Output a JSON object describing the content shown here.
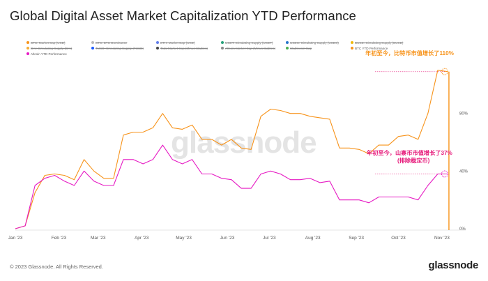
{
  "title": "Global Digital Asset Market Capitalization YTD Performance",
  "legend": [
    {
      "label": "BTC: Market Cap (USD)",
      "color": "#f7931a",
      "active": false
    },
    {
      "label": "BTC: BTC Dominance",
      "color": "#bbbbbb",
      "active": false
    },
    {
      "label": "ETH: Market Cap (USD)",
      "color": "#627eea",
      "active": false
    },
    {
      "label": "USDT: Circulating Supply (USDT)",
      "color": "#26a17b",
      "active": false
    },
    {
      "label": "USDC: Circulating Supply (USDC)",
      "color": "#2775ca",
      "active": false
    },
    {
      "label": "BUSD: Circulating Supply (BUSD)",
      "color": "#f0b90b",
      "active": false
    },
    {
      "label": "DAI: Circulating Supply (DAI)",
      "color": "#f5ac37",
      "active": false
    },
    {
      "label": "TUSD: Circulating Supply (TUSD)",
      "color": "#1a5aff",
      "active": false
    },
    {
      "label": "Total Market Cap (Minus Stables)",
      "color": "#444444",
      "active": false
    },
    {
      "label": "Altcoin Market Cap (Minus Stables)",
      "color": "#888888",
      "active": false
    },
    {
      "label": "Stablecoin Cap",
      "color": "#4caf50",
      "active": false
    },
    {
      "label": "BTC YTD Performance",
      "color": "#f7931a",
      "active": true
    },
    {
      "label": "Altcoin YTD Performance",
      "color": "#e619c3",
      "active": true
    }
  ],
  "annotations": {
    "btc": "年初至今，比特币市值增长了110%",
    "alt_line1": "年初至今，山寨币市值增长了37%",
    "alt_line2": "(排除稳定币)"
  },
  "watermark": "glassnode",
  "footer": "© 2023 Glassnode. All Rights Reserved.",
  "logo": "glassnode",
  "chart_data": {
    "type": "line",
    "x": [
      "2023-01-01",
      "2023-01-08",
      "2023-01-15",
      "2023-01-22",
      "2023-01-29",
      "2023-02-05",
      "2023-02-12",
      "2023-02-19",
      "2023-02-26",
      "2023-03-05",
      "2023-03-12",
      "2023-03-19",
      "2023-03-26",
      "2023-04-02",
      "2023-04-09",
      "2023-04-16",
      "2023-04-23",
      "2023-04-30",
      "2023-05-07",
      "2023-05-14",
      "2023-05-21",
      "2023-05-28",
      "2023-06-04",
      "2023-06-11",
      "2023-06-18",
      "2023-06-25",
      "2023-07-02",
      "2023-07-09",
      "2023-07-16",
      "2023-07-23",
      "2023-07-30",
      "2023-08-06",
      "2023-08-13",
      "2023-08-20",
      "2023-08-27",
      "2023-09-03",
      "2023-09-10",
      "2023-09-17",
      "2023-09-24",
      "2023-10-01",
      "2023-10-08",
      "2023-10-15",
      "2023-10-22",
      "2023-10-29",
      "2023-11-05"
    ],
    "series": [
      {
        "name": "BTC YTD Performance",
        "color": "#f7931a",
        "values": [
          0,
          2,
          25,
          37,
          38,
          37,
          34,
          48,
          40,
          35,
          35,
          65,
          67,
          67,
          70,
          80,
          70,
          69,
          72,
          62,
          62,
          58,
          62,
          56,
          55,
          78,
          83,
          82,
          80,
          80,
          78,
          77,
          76,
          56,
          56,
          55,
          52,
          58,
          58,
          64,
          65,
          62,
          80,
          110,
          109
        ]
      },
      {
        "name": "Altcoin YTD Performance",
        "color": "#e619c3",
        "values": [
          0,
          2,
          30,
          35,
          37,
          33,
          30,
          40,
          33,
          30,
          30,
          48,
          48,
          45,
          48,
          58,
          48,
          45,
          48,
          38,
          38,
          35,
          34,
          28,
          28,
          38,
          40,
          38,
          34,
          34,
          35,
          32,
          33,
          20,
          20,
          20,
          18,
          22,
          22,
          22,
          22,
          20,
          30,
          38,
          38
        ]
      }
    ],
    "x_ticks": [
      "Jan '23",
      "Feb '23",
      "Mar '23",
      "Apr '23",
      "May '23",
      "Jun '23",
      "Jul '23",
      "Aug '23",
      "Sep '23",
      "Oct '23",
      "Nov '23"
    ],
    "y_ticks": [
      "0%",
      "40%",
      "80%"
    ],
    "ylim": [
      0,
      120
    ],
    "grid": false,
    "legend_position": "top"
  }
}
